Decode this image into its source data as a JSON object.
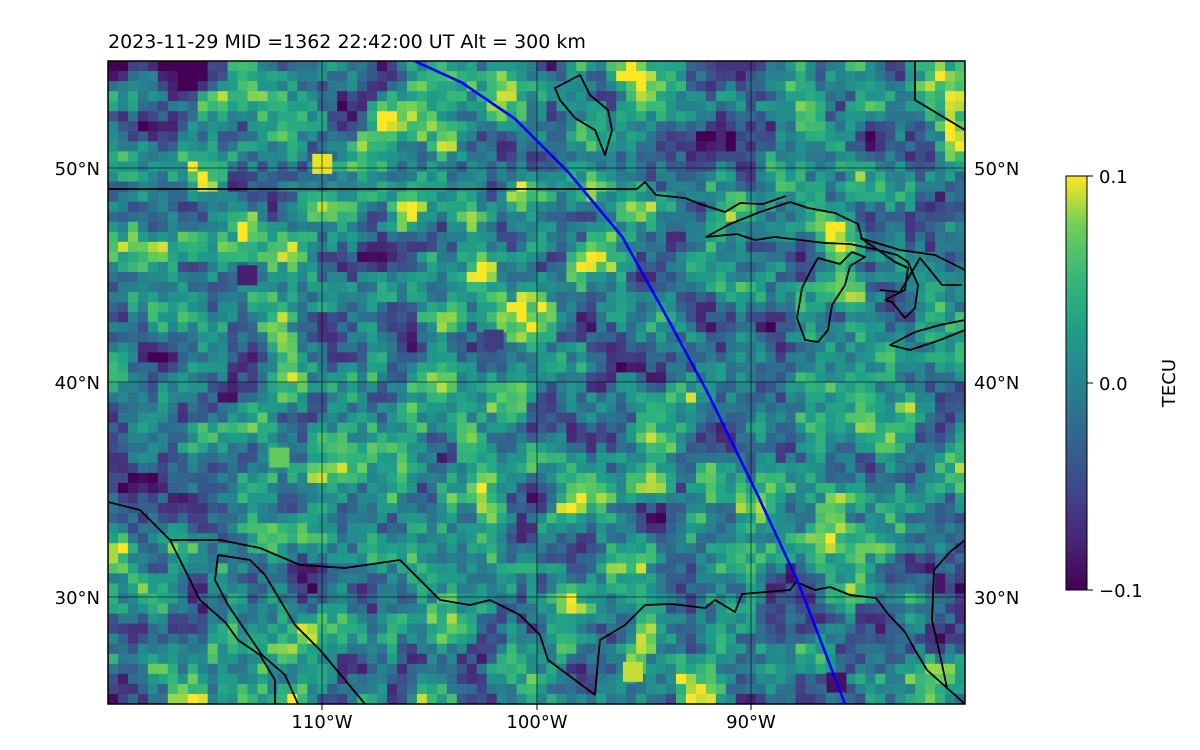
{
  "title": "2023-11-29  MID =1362    22:42:00  UT  Alt = 300 km",
  "map": {
    "lon_range": [
      -120,
      -80
    ],
    "lat_range": [
      25,
      55
    ],
    "lon_ticks": [
      -110,
      -100,
      -90
    ],
    "lat_ticks": [
      30,
      40,
      50
    ],
    "lon_tick_labels": [
      "110°W",
      "100°W",
      "90°W"
    ],
    "lat_tick_labels": [
      "30°N",
      "40°N",
      "50°N"
    ],
    "grid": true,
    "coastline_color": "#000000",
    "track_color": "#0000ff"
  },
  "colorbar": {
    "label": "TECU",
    "vmin": -0.1,
    "vmax": 0.1,
    "tick_labels": [
      "0.1",
      "0.0",
      "−0.1"
    ],
    "colormap": "viridis"
  },
  "satellite_track": [
    [
      -105.7,
      55
    ],
    [
      -103.5,
      54
    ],
    [
      -101,
      52.3
    ],
    [
      -98.5,
      49.8
    ],
    [
      -96,
      46.8
    ],
    [
      -94,
      43.2
    ],
    [
      -92,
      39.5
    ],
    [
      -89.7,
      34.8
    ],
    [
      -87.8,
      30.7
    ],
    [
      -86.6,
      27.6
    ],
    [
      -85.6,
      25
    ]
  ]
}
